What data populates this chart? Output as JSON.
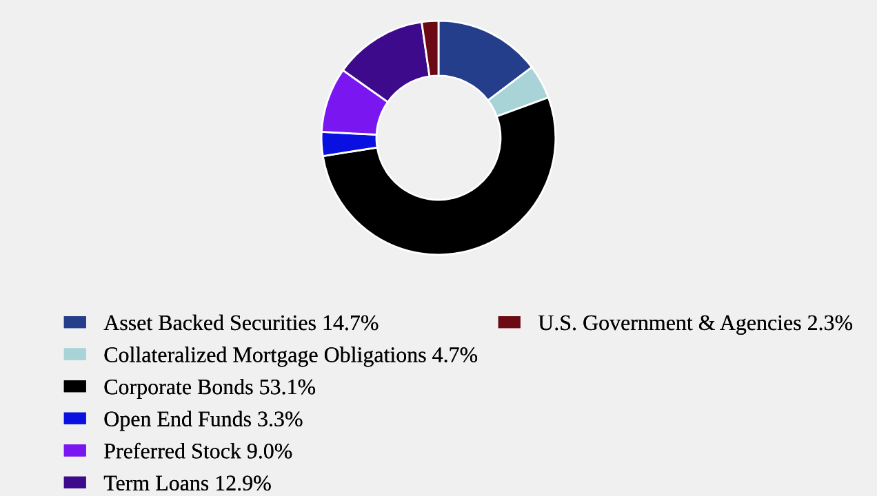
{
  "chart_data": {
    "type": "donut",
    "categories": [
      "Asset Backed Securities",
      "Collateralized Mortgage Obligations",
      "Corporate Bonds",
      "Open End Funds",
      "Preferred Stock",
      "Term Loans",
      "U.S. Government & Agencies"
    ],
    "values": [
      14.7,
      4.7,
      53.1,
      3.3,
      9.0,
      12.9,
      2.3
    ],
    "value_labels": [
      "14.7%",
      "4.7%",
      "53.1%",
      "3.3%",
      "9.0%",
      "12.9%",
      "2.3%"
    ],
    "colors": [
      "#253e8c",
      "#a8d4d8",
      "#000000",
      "#0a10e0",
      "#7a16f0",
      "#3d0a8c",
      "#6b0a14"
    ],
    "legend": "bottom"
  }
}
